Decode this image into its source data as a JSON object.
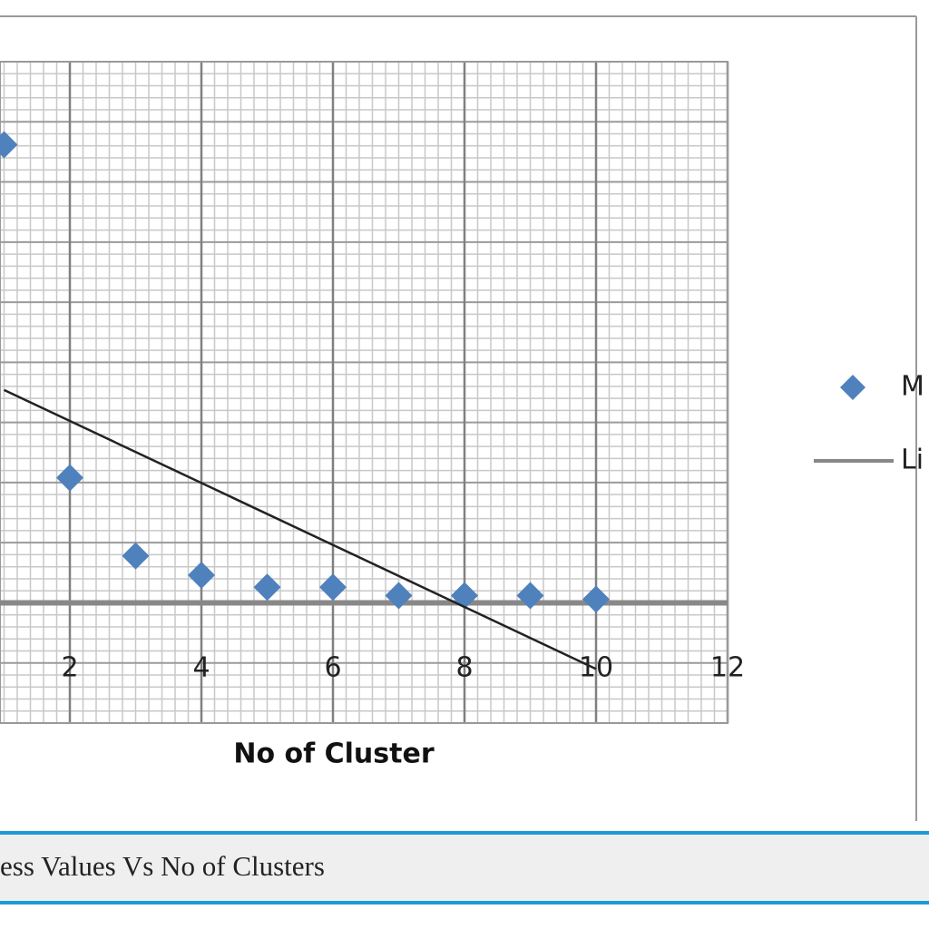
{
  "chart_data": {
    "type": "scatter",
    "x_label": "No of Cluster",
    "xlim": [
      0,
      12
    ],
    "xticks": [
      2,
      4,
      6,
      8,
      10,
      12
    ],
    "ylim": [
      -1,
      4.5
    ],
    "grid": true,
    "series": [
      {
        "name": "M",
        "type": "scatter",
        "color": "#4f81bd",
        "x": [
          1,
          2,
          3,
          4,
          5,
          6,
          7,
          8,
          9,
          10
        ],
        "values": [
          3.81,
          1.04,
          0.39,
          0.23,
          0.13,
          0.13,
          0.06,
          0.06,
          0.06,
          0.03
        ]
      },
      {
        "name": "Li",
        "type": "line",
        "color": "#222222",
        "x": [
          1,
          10
        ],
        "values": [
          1.77,
          -0.55
        ]
      }
    ],
    "caption": "ess Values Vs No of Clusters"
  }
}
